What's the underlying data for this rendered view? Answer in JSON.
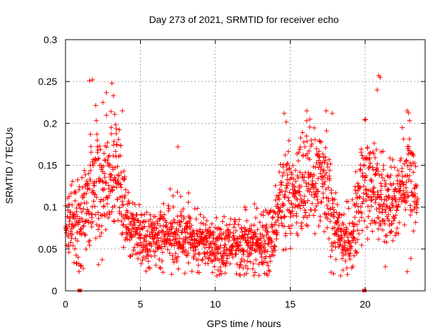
{
  "chart_data": {
    "type": "scatter",
    "title": "Day 273 of 2021, SRMTID for receiver echo",
    "xlabel": "GPS time / hours",
    "ylabel": "SRMTID / TECUs",
    "xlim": [
      0,
      24
    ],
    "ylim": [
      0,
      0.3
    ],
    "grid": true,
    "marker": "+",
    "series_color": "#ff0000",
    "x_ticks": [
      {
        "value": 0,
        "label": "0"
      },
      {
        "value": 5,
        "label": "5"
      },
      {
        "value": 10,
        "label": "10"
      },
      {
        "value": 15,
        "label": "15"
      },
      {
        "value": 20,
        "label": "20"
      }
    ],
    "y_ticks": [
      {
        "value": 0,
        "label": "0"
      },
      {
        "value": 0.05,
        "label": "0.05"
      },
      {
        "value": 0.1,
        "label": "0.1"
      },
      {
        "value": 0.15,
        "label": "0.15"
      },
      {
        "value": 0.2,
        "label": "0.2"
      },
      {
        "value": 0.25,
        "label": "0.25"
      },
      {
        "value": 0.3,
        "label": "0.3"
      }
    ],
    "envelope_profile": {
      "hours": [
        0.0,
        0.5,
        1.0,
        1.5,
        2.0,
        2.5,
        3.0,
        3.5,
        4.0,
        4.5,
        5.0,
        6.0,
        7.0,
        8.0,
        9.0,
        10.0,
        11.0,
        12.0,
        13.0,
        14.0,
        14.5,
        15.0,
        15.5,
        16.0,
        16.5,
        17.0,
        17.5,
        18.0,
        18.5,
        19.0,
        19.5,
        20.0,
        20.5,
        21.0,
        21.5,
        22.0,
        22.5,
        23.0,
        23.5
      ],
      "median": [
        0.075,
        0.08,
        0.085,
        0.11,
        0.14,
        0.125,
        0.14,
        0.15,
        0.09,
        0.07,
        0.065,
        0.065,
        0.07,
        0.065,
        0.06,
        0.055,
        0.055,
        0.055,
        0.06,
        0.065,
        0.12,
        0.12,
        0.115,
        0.13,
        0.13,
        0.14,
        0.12,
        0.08,
        0.065,
        0.06,
        0.1,
        0.13,
        0.13,
        0.11,
        0.1,
        0.11,
        0.12,
        0.14,
        0.1
      ],
      "spread": [
        0.025,
        0.03,
        0.035,
        0.035,
        0.045,
        0.045,
        0.05,
        0.04,
        0.03,
        0.022,
        0.022,
        0.022,
        0.025,
        0.022,
        0.022,
        0.022,
        0.022,
        0.022,
        0.025,
        0.03,
        0.04,
        0.04,
        0.04,
        0.04,
        0.04,
        0.04,
        0.04,
        0.03,
        0.025,
        0.025,
        0.035,
        0.045,
        0.045,
        0.04,
        0.035,
        0.035,
        0.035,
        0.04,
        0.03
      ]
    },
    "sample_interval_hours": 0.012,
    "notable_points": [
      {
        "x": 1.6,
        "y": 0.251
      },
      {
        "x": 1.8,
        "y": 0.252
      },
      {
        "x": 2.5,
        "y": 0.225
      },
      {
        "x": 3.1,
        "y": 0.248
      },
      {
        "x": 3.2,
        "y": 0.233
      },
      {
        "x": 3.8,
        "y": 0.215
      },
      {
        "x": 7.5,
        "y": 0.172
      },
      {
        "x": 14.6,
        "y": 0.212
      },
      {
        "x": 16.1,
        "y": 0.215
      },
      {
        "x": 17.4,
        "y": 0.215
      },
      {
        "x": 17.8,
        "y": 0.212
      },
      {
        "x": 20.9,
        "y": 0.257
      },
      {
        "x": 21.0,
        "y": 0.255
      },
      {
        "x": 20.8,
        "y": 0.24
      },
      {
        "x": 22.8,
        "y": 0.215
      },
      {
        "x": 0.9,
        "y": 0.023
      },
      {
        "x": 10.1,
        "y": 0.018
      },
      {
        "x": 22.8,
        "y": 0.023
      }
    ],
    "zero_markers": [
      {
        "x": 0.95,
        "y": 0
      },
      {
        "x": 19.95,
        "y": 0
      }
    ]
  }
}
